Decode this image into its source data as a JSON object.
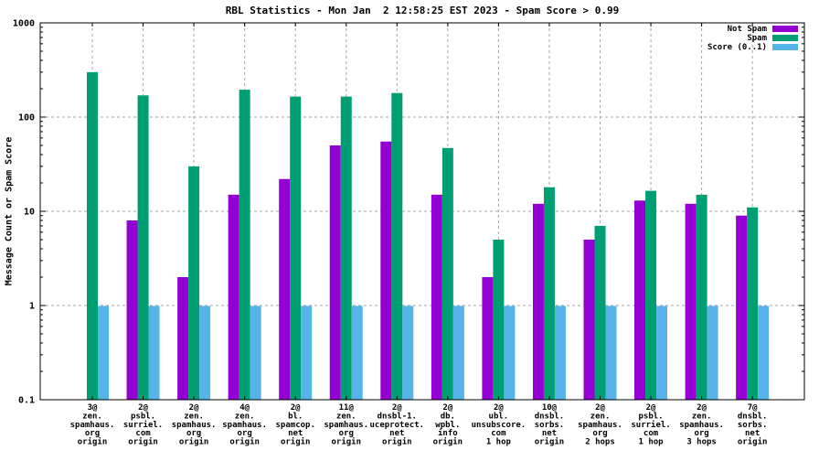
{
  "chart_data": {
    "type": "bar",
    "title": "RBL Statistics - Mon Jan  2 12:58:25 EST 2023 - Spam Score > 0.99",
    "xlabel": "",
    "ylabel": "Message Count or Spam Score",
    "yscale": "log",
    "ylim": [
      0.1,
      1000
    ],
    "ytick_values": [
      0.1,
      1,
      10,
      100,
      1000
    ],
    "ytick_labels": [
      "0.1",
      "1",
      "10",
      "100",
      "1000"
    ],
    "grid_values": [
      1,
      10,
      100
    ],
    "grid": true,
    "legend_position": "top-right",
    "categories": [
      [
        "3@",
        "zen.",
        "spamhaus.",
        "org",
        "origin"
      ],
      [
        "2@",
        "psbl.",
        "surriel.",
        "com",
        "origin"
      ],
      [
        "2@",
        "zen.",
        "spamhaus.",
        "org",
        "origin"
      ],
      [
        "4@",
        "zen.",
        "spamhaus.",
        "org",
        "origin"
      ],
      [
        "2@",
        "bl.",
        "spamcop.",
        "net",
        "origin"
      ],
      [
        "11@",
        "zen.",
        "spamhaus.",
        "org",
        "origin"
      ],
      [
        "2@",
        "dnsbl-1.",
        "uceprotect.",
        "net",
        "origin"
      ],
      [
        "2@",
        "db.",
        "wpbl.",
        "info",
        "origin"
      ],
      [
        "2@",
        "ubl.",
        "unsubscore.",
        "com",
        "1 hop"
      ],
      [
        "10@",
        "dnsbl.",
        "sorbs.",
        "net",
        "origin"
      ],
      [
        "2@",
        "zen.",
        "spamhaus.",
        "org",
        "2 hops"
      ],
      [
        "2@",
        "psbl.",
        "surriel.",
        "com",
        "1 hop"
      ],
      [
        "2@",
        "zen.",
        "spamhaus.",
        "org",
        "3 hops"
      ],
      [
        "7@",
        "dnsbl.",
        "sorbs.",
        "net",
        "origin"
      ]
    ],
    "series": [
      {
        "name": "Not Spam",
        "color": "#9400d3",
        "values": [
          null,
          8,
          2,
          15,
          22,
          50,
          55,
          15,
          2,
          12,
          5,
          13,
          12,
          9
        ]
      },
      {
        "name": "Spam",
        "color": "#009e73",
        "values": [
          300,
          170,
          30,
          195,
          165,
          165,
          180,
          47,
          5,
          18,
          7,
          16.5,
          15,
          11
        ]
      },
      {
        "name": "Score (0..1)",
        "color": "#56b4e9",
        "values": [
          0.99,
          0.99,
          0.99,
          0.99,
          0.99,
          0.99,
          0.99,
          0.99,
          0.99,
          0.99,
          0.99,
          0.99,
          0.99,
          0.99
        ]
      }
    ]
  }
}
